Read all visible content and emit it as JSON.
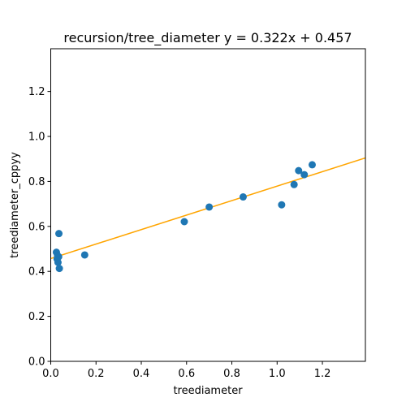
{
  "chart_data": {
    "type": "scatter",
    "title": "recursion/tree_diameter y = 0.322x + 0.457",
    "xlabel": "treediameter",
    "ylabel": "treediameter_cppyy",
    "xlim": [
      0,
      1.39
    ],
    "ylim": [
      0,
      1.39
    ],
    "xticks": [
      "0.0",
      "0.2",
      "0.4",
      "0.6",
      "0.8",
      "1.0",
      "1.2"
    ],
    "yticks": [
      "0.0",
      "0.2",
      "0.4",
      "0.6",
      "0.8",
      "1.0",
      "1.2"
    ],
    "grid": false,
    "points": [
      {
        "x": 0.025,
        "y": 0.485
      },
      {
        "x": 0.03,
        "y": 0.47
      },
      {
        "x": 0.028,
        "y": 0.455
      },
      {
        "x": 0.032,
        "y": 0.44
      },
      {
        "x": 0.035,
        "y": 0.465
      },
      {
        "x": 0.036,
        "y": 0.568
      },
      {
        "x": 0.038,
        "y": 0.413
      },
      {
        "x": 0.15,
        "y": 0.473
      },
      {
        "x": 0.59,
        "y": 0.621
      },
      {
        "x": 0.7,
        "y": 0.686
      },
      {
        "x": 0.85,
        "y": 0.731
      },
      {
        "x": 1.02,
        "y": 0.696
      },
      {
        "x": 1.075,
        "y": 0.786
      },
      {
        "x": 1.095,
        "y": 0.848
      },
      {
        "x": 1.12,
        "y": 0.83
      },
      {
        "x": 1.155,
        "y": 0.874
      }
    ],
    "fit_line": {
      "slope": 0.322,
      "intercept": 0.457,
      "color": "#ffa500"
    },
    "point_color": "#1f77b4"
  }
}
